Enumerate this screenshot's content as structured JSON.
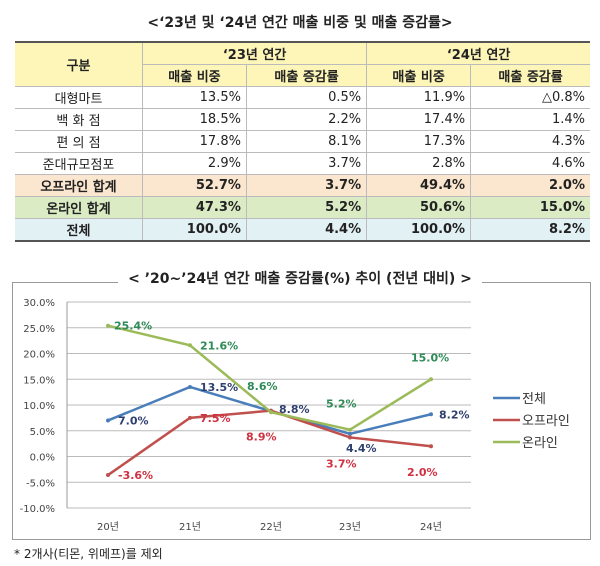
{
  "table": {
    "title": "<‘23년 및 ‘24년 연간 매출 비중 및 매출 증감률>",
    "col_label": "구분",
    "group1": "‘23년 연간",
    "group2": "‘24년 연간",
    "sub": [
      "매출 비중",
      "매출 증감률",
      "매출 비중",
      "매출 증감률"
    ],
    "rows": [
      {
        "label": "대형마트",
        "v": [
          "13.5%",
          "0.5%",
          "11.9%",
          "△0.8%"
        ]
      },
      {
        "label": "백 화 점",
        "v": [
          "18.5%",
          "2.2%",
          "17.4%",
          "1.4%"
        ]
      },
      {
        "label": "편 의 점",
        "v": [
          "17.8%",
          "8.1%",
          "17.3%",
          "4.3%"
        ]
      },
      {
        "label": "준대규모점포",
        "v": [
          "2.9%",
          "3.7%",
          "2.8%",
          "4.6%"
        ]
      },
      {
        "label": "오프라인 합계",
        "v": [
          "52.7%",
          "3.7%",
          "49.4%",
          "2.0%"
        ]
      },
      {
        "label": "온라인 합계",
        "v": [
          "47.3%",
          "5.2%",
          "50.6%",
          "15.0%"
        ]
      },
      {
        "label": "전체",
        "v": [
          "100.0%",
          "4.4%",
          "100.0%",
          "8.2%"
        ]
      }
    ]
  },
  "chart_data": {
    "type": "line",
    "title": "< ’20~’24년 연간 매출 증감률(%) 추이 (전년 대비) >",
    "categories": [
      "20년",
      "21년",
      "22년",
      "23년",
      "24년"
    ],
    "ylim": [
      -10,
      30
    ],
    "yticks": [
      "-10.0%",
      "-5.0%",
      "0.0%",
      "5.0%",
      "10.0%",
      "15.0%",
      "20.0%",
      "25.0%",
      "30.0%"
    ],
    "grid": true,
    "legend": "right",
    "series": [
      {
        "name": "전체",
        "color": "#4a7ebb",
        "label_color": "#2f3f6f",
        "values": [
          7.0,
          13.5,
          8.8,
          4.4,
          8.2
        ],
        "labels": [
          "7.0%",
          "13.5%",
          "8.8%",
          "4.4%",
          "8.2%"
        ]
      },
      {
        "name": "오프라인",
        "color": "#c0504d",
        "label_color": "#d03040",
        "values": [
          -3.6,
          7.5,
          8.9,
          3.7,
          2.0
        ],
        "labels": [
          "-3.6%",
          "7.5%",
          "8.9%",
          "3.7%",
          "2.0%"
        ]
      },
      {
        "name": "온라인",
        "color": "#9bbb59",
        "label_color": "#2e8b57",
        "values": [
          25.4,
          21.6,
          8.6,
          5.2,
          15.0
        ],
        "labels": [
          "25.4%",
          "21.6%",
          "8.6%",
          "5.2%",
          "15.0%"
        ]
      }
    ]
  },
  "footnote": "* 2개사(티몬, 위메프)를 제외"
}
